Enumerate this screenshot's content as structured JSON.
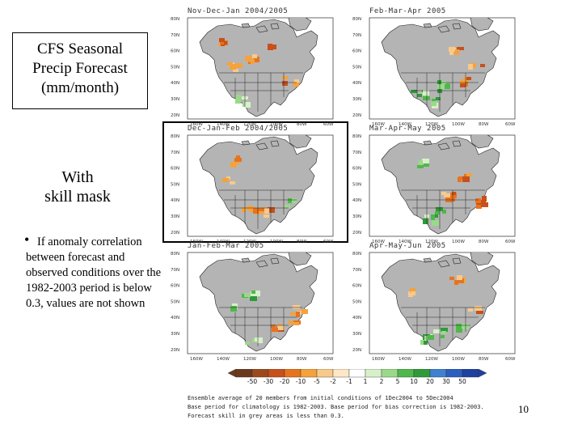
{
  "title_box": {
    "lines": [
      "CFS Seasonal",
      "Precip Forecast",
      "(mm/month)"
    ]
  },
  "with_mask": {
    "lines": [
      "With",
      "skill mask"
    ]
  },
  "bullet": {
    "symbol": "•",
    "text": "If anomaly correlation between forecast and observed conditions over the 1982-2003 period is below 0.3, values are not shown"
  },
  "page_number": "10",
  "panels": [
    {
      "label": "Nov-Dec-Jan 2004/2005"
    },
    {
      "label": "Feb-Mar-Apr 2005"
    },
    {
      "label": "Dec-Jan-Feb 2004/2005"
    },
    {
      "label": "Mar-Apr-May 2005"
    },
    {
      "label": "Jan-Feb-Mar 2005"
    },
    {
      "label": "Apr-May-Jun 2005"
    }
  ],
  "axis": {
    "lat_labels": [
      "80N",
      "70N",
      "60N",
      "50N",
      "40N",
      "30N",
      "20N"
    ],
    "lon_labels": [
      "160W",
      "140W",
      "120W",
      "100W",
      "80W",
      "60W"
    ]
  },
  "colorbar": {
    "labels": [
      "-50",
      "-30",
      "-20",
      "-10",
      "-5",
      "-2",
      "-1",
      "1",
      "2",
      "5",
      "10",
      "20",
      "30",
      "50"
    ],
    "colors": [
      "#6b3a1e",
      "#9c4a1c",
      "#c8501a",
      "#e8731e",
      "#f5a23c",
      "#f9c98a",
      "#fde7c6",
      "#ffffff",
      "#d8f0c8",
      "#9ad98a",
      "#4fb84a",
      "#2f9a3a",
      "#3f80d0",
      "#2a5ec0",
      "#1e40a0"
    ]
  },
  "notes": [
    "Ensemble average of 20 members from initial conditions of 1Dec2004 to 5Dec2004",
    "Base period for climatology is 1982-2003. Base period for bias correction is 1982-2003.",
    "Forecast skill in grey areas is less than 0.3."
  ]
}
